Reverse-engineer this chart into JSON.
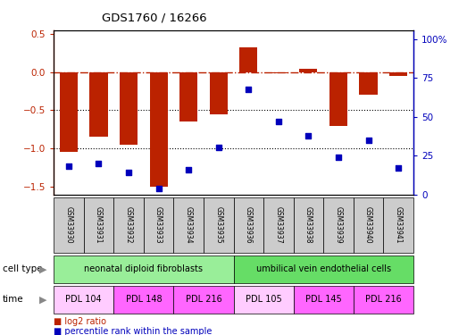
{
  "title": "GDS1760 / 16266",
  "samples": [
    "GSM33930",
    "GSM33931",
    "GSM33932",
    "GSM33933",
    "GSM33934",
    "GSM33935",
    "GSM33936",
    "GSM33937",
    "GSM33938",
    "GSM33939",
    "GSM33940",
    "GSM33941"
  ],
  "log2_ratio": [
    -1.05,
    -0.85,
    -0.95,
    -1.5,
    -0.65,
    -0.55,
    0.33,
    -0.02,
    0.04,
    -0.7,
    -0.3,
    -0.05
  ],
  "percentile_rank": [
    18,
    20,
    14,
    4,
    16,
    30,
    68,
    47,
    38,
    24,
    35,
    17
  ],
  "ylim_left": [
    -1.6,
    0.55
  ],
  "ylim_right": [
    0,
    106
  ],
  "yticks_left": [
    -1.5,
    -1.0,
    -0.5,
    0,
    0.5
  ],
  "yticks_right": [
    0,
    25,
    50,
    75,
    100
  ],
  "ytick_labels_right": [
    "0",
    "25",
    "50",
    "75",
    "100%"
  ],
  "cell_type_groups": [
    {
      "label": "neonatal diploid fibroblasts",
      "start": 0,
      "end": 6,
      "color": "#99EE99"
    },
    {
      "label": "umbilical vein endothelial cells",
      "start": 6,
      "end": 12,
      "color": "#66DD66"
    }
  ],
  "time_groups": [
    {
      "label": "PDL 104",
      "start": 0,
      "end": 2,
      "color": "#FFCCFF"
    },
    {
      "label": "PDL 148",
      "start": 2,
      "end": 4,
      "color": "#FF66FF"
    },
    {
      "label": "PDL 216",
      "start": 4,
      "end": 6,
      "color": "#FF66FF"
    },
    {
      "label": "PDL 105",
      "start": 6,
      "end": 8,
      "color": "#FFCCFF"
    },
    {
      "label": "PDL 145",
      "start": 8,
      "end": 10,
      "color": "#FF66FF"
    },
    {
      "label": "PDL 216",
      "start": 10,
      "end": 12,
      "color": "#FF66FF"
    }
  ],
  "bar_color": "#BB2200",
  "dot_color": "#0000BB",
  "hline_y": 0,
  "dotted_lines": [
    -0.5,
    -1.0
  ],
  "background_color": "#FFFFFF",
  "sample_box_color": "#CCCCCC",
  "cell_type_label": "cell type",
  "time_label": "time",
  "legend_items": [
    {
      "label": "log2 ratio",
      "color": "#BB2200"
    },
    {
      "label": "percentile rank within the sample",
      "color": "#0000BB"
    }
  ]
}
